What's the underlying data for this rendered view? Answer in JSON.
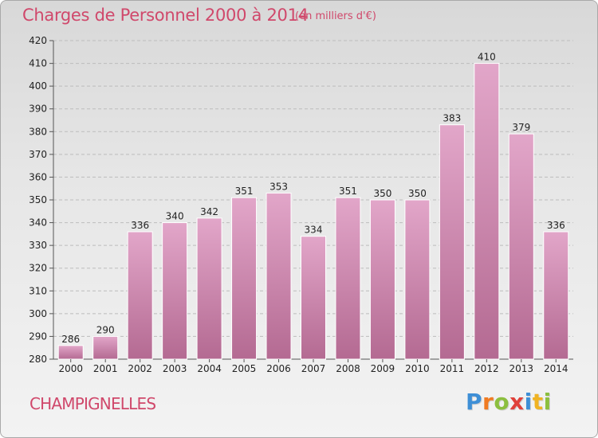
{
  "title": "Charges de Personnel 2000 à 2014",
  "subtitle": "(en milliers d'€)",
  "commune": "CHAMPIGNELLES",
  "logo": {
    "text": "Proxiti",
    "letters": [
      {
        "char": "P",
        "color": "#3e8fd6"
      },
      {
        "char": "r",
        "color": "#f07b22"
      },
      {
        "char": "o",
        "color": "#8cbf3f"
      },
      {
        "char": "x",
        "color": "#e0413a"
      },
      {
        "char": "i",
        "color": "#3e8fd6"
      },
      {
        "char": "t",
        "color": "#f0b322"
      },
      {
        "char": "i",
        "color": "#8cbf3f"
      }
    ]
  },
  "colors": {
    "bar_top": "#e2a6c9",
    "bar_bottom": "#b46a92",
    "bar_stroke": "#ffffff",
    "axis": "#555555",
    "grid": "#bcbcbc",
    "text": "#222222",
    "accent": "#d0486b"
  },
  "chart_data": {
    "type": "bar",
    "categories": [
      "2000",
      "2001",
      "2002",
      "2003",
      "2004",
      "2005",
      "2006",
      "2007",
      "2008",
      "2009",
      "2010",
      "2011",
      "2012",
      "2013",
      "2014"
    ],
    "values": [
      286,
      290,
      336,
      340,
      342,
      351,
      353,
      334,
      351,
      350,
      350,
      383,
      410,
      379,
      336
    ],
    "title": "Charges de Personnel 2000 à 2014",
    "subtitle": "(en milliers d'€)",
    "xlabel": "",
    "ylabel": "",
    "ylim": [
      280,
      420
    ],
    "ytick_step": 10,
    "grid": true,
    "data_labels": true
  }
}
